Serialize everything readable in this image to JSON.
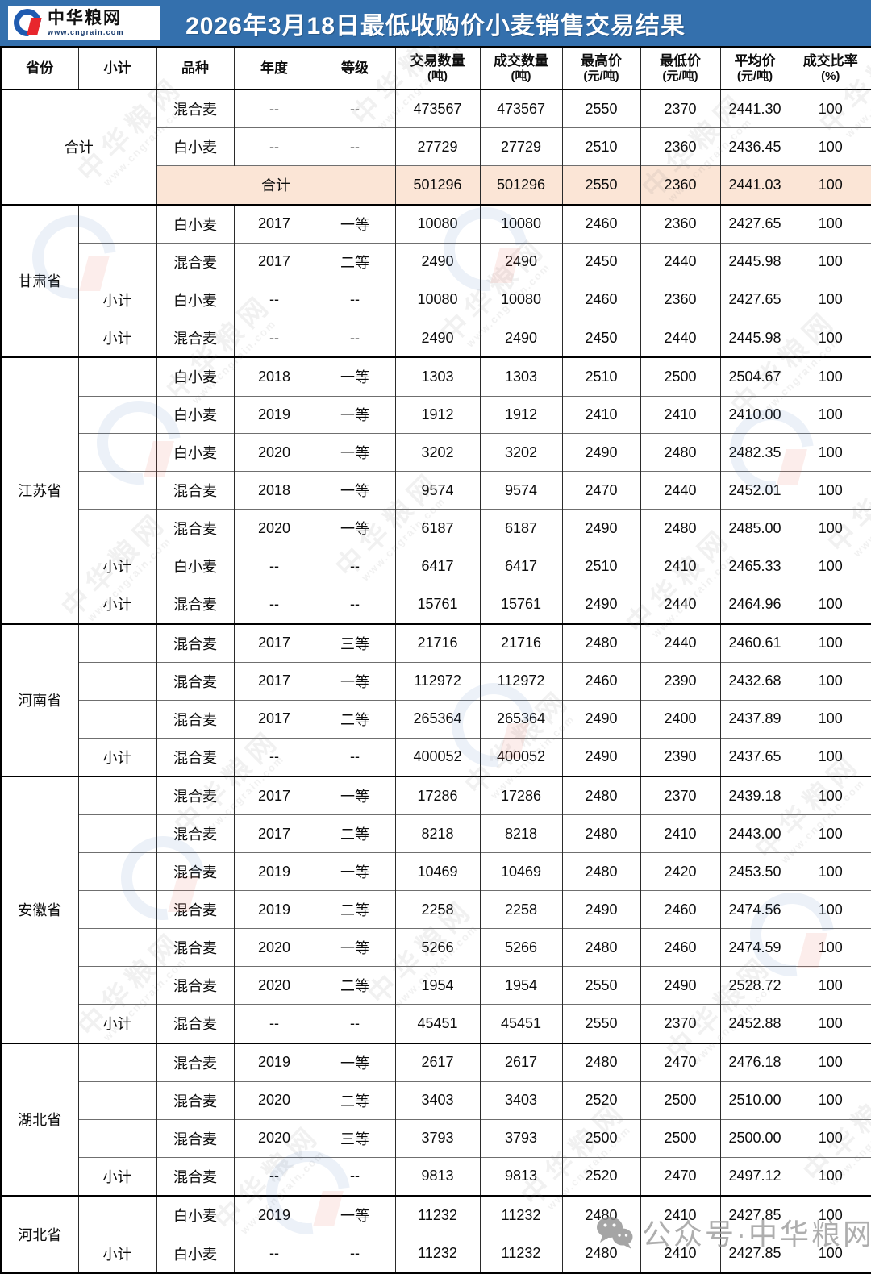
{
  "banner": {
    "logo_title": "中华粮网",
    "logo_url": "www.cngrain.com",
    "title": "2026年3月18日最低收购价小麦销售交易结果"
  },
  "table": {
    "columns": [
      {
        "label": "省份",
        "sub": ""
      },
      {
        "label": "小计",
        "sub": ""
      },
      {
        "label": "品种",
        "sub": ""
      },
      {
        "label": "年度",
        "sub": ""
      },
      {
        "label": "等级",
        "sub": ""
      },
      {
        "label": "交易数量",
        "sub": "(吨)"
      },
      {
        "label": "成交数量",
        "sub": "(吨)"
      },
      {
        "label": "最高价",
        "sub": "(元/吨)"
      },
      {
        "label": "最低价",
        "sub": "(元/吨)"
      },
      {
        "label": "平均价",
        "sub": "(元/吨)"
      },
      {
        "label": "成交比率",
        "sub": "(%)"
      }
    ],
    "sections": [
      {
        "province": "合计",
        "province_colspan": 2,
        "rows": [
          {
            "cells": [
              "混合麦",
              "--",
              "--",
              "473567",
              "473567",
              "2550",
              "2370",
              "2441.30",
              "100"
            ]
          },
          {
            "cells": [
              "白小麦",
              "--",
              "--",
              "27729",
              "27729",
              "2510",
              "2360",
              "2436.45",
              "100"
            ]
          },
          {
            "merged_label": "合计",
            "highlight": true,
            "cells": [
              "501296",
              "501296",
              "2550",
              "2360",
              "2441.03",
              "100"
            ]
          }
        ]
      },
      {
        "province": "甘肃省",
        "rows": [
          {
            "subtotal": "",
            "cells": [
              "白小麦",
              "2017",
              "一等",
              "10080",
              "10080",
              "2460",
              "2360",
              "2427.65",
              "100"
            ]
          },
          {
            "subtotal": "",
            "cells": [
              "混合麦",
              "2017",
              "二等",
              "2490",
              "2490",
              "2450",
              "2440",
              "2445.98",
              "100"
            ]
          },
          {
            "subtotal": "小计",
            "cells": [
              "白小麦",
              "--",
              "--",
              "10080",
              "10080",
              "2460",
              "2360",
              "2427.65",
              "100"
            ]
          },
          {
            "subtotal": "小计",
            "cells": [
              "混合麦",
              "--",
              "--",
              "2490",
              "2490",
              "2450",
              "2440",
              "2445.98",
              "100"
            ]
          }
        ]
      },
      {
        "province": "江苏省",
        "rows": [
          {
            "subtotal": "",
            "cells": [
              "白小麦",
              "2018",
              "一等",
              "1303",
              "1303",
              "2510",
              "2500",
              "2504.67",
              "100"
            ]
          },
          {
            "subtotal": "",
            "cells": [
              "白小麦",
              "2019",
              "一等",
              "1912",
              "1912",
              "2410",
              "2410",
              "2410.00",
              "100"
            ]
          },
          {
            "subtotal": "",
            "cells": [
              "白小麦",
              "2020",
              "一等",
              "3202",
              "3202",
              "2490",
              "2480",
              "2482.35",
              "100"
            ]
          },
          {
            "subtotal": "",
            "cells": [
              "混合麦",
              "2018",
              "一等",
              "9574",
              "9574",
              "2470",
              "2440",
              "2452.01",
              "100"
            ]
          },
          {
            "subtotal": "",
            "cells": [
              "混合麦",
              "2020",
              "一等",
              "6187",
              "6187",
              "2490",
              "2480",
              "2485.00",
              "100"
            ]
          },
          {
            "subtotal": "小计",
            "cells": [
              "白小麦",
              "--",
              "--",
              "6417",
              "6417",
              "2510",
              "2410",
              "2465.33",
              "100"
            ]
          },
          {
            "subtotal": "小计",
            "cells": [
              "混合麦",
              "--",
              "--",
              "15761",
              "15761",
              "2490",
              "2440",
              "2464.96",
              "100"
            ]
          }
        ]
      },
      {
        "province": "河南省",
        "rows": [
          {
            "subtotal": "",
            "cells": [
              "混合麦",
              "2017",
              "三等",
              "21716",
              "21716",
              "2480",
              "2440",
              "2460.61",
              "100"
            ]
          },
          {
            "subtotal": "",
            "cells": [
              "混合麦",
              "2017",
              "一等",
              "112972",
              "112972",
              "2460",
              "2390",
              "2432.68",
              "100"
            ]
          },
          {
            "subtotal": "",
            "cells": [
              "混合麦",
              "2017",
              "二等",
              "265364",
              "265364",
              "2490",
              "2400",
              "2437.89",
              "100"
            ]
          },
          {
            "subtotal": "小计",
            "cells": [
              "混合麦",
              "--",
              "--",
              "400052",
              "400052",
              "2490",
              "2390",
              "2437.65",
              "100"
            ]
          }
        ]
      },
      {
        "province": "安徽省",
        "rows": [
          {
            "subtotal": "",
            "cells": [
              "混合麦",
              "2017",
              "一等",
              "17286",
              "17286",
              "2480",
              "2370",
              "2439.18",
              "100"
            ]
          },
          {
            "subtotal": "",
            "cells": [
              "混合麦",
              "2017",
              "二等",
              "8218",
              "8218",
              "2480",
              "2410",
              "2443.00",
              "100"
            ]
          },
          {
            "subtotal": "",
            "cells": [
              "混合麦",
              "2019",
              "一等",
              "10469",
              "10469",
              "2480",
              "2420",
              "2453.50",
              "100"
            ]
          },
          {
            "subtotal": "",
            "cells": [
              "混合麦",
              "2019",
              "二等",
              "2258",
              "2258",
              "2490",
              "2460",
              "2474.56",
              "100"
            ]
          },
          {
            "subtotal": "",
            "cells": [
              "混合麦",
              "2020",
              "一等",
              "5266",
              "5266",
              "2480",
              "2460",
              "2474.59",
              "100"
            ]
          },
          {
            "subtotal": "",
            "cells": [
              "混合麦",
              "2020",
              "二等",
              "1954",
              "1954",
              "2550",
              "2490",
              "2528.72",
              "100"
            ]
          },
          {
            "subtotal": "小计",
            "cells": [
              "混合麦",
              "--",
              "--",
              "45451",
              "45451",
              "2550",
              "2370",
              "2452.88",
              "100"
            ]
          }
        ]
      },
      {
        "province": "湖北省",
        "rows": [
          {
            "subtotal": "",
            "cells": [
              "混合麦",
              "2019",
              "一等",
              "2617",
              "2617",
              "2480",
              "2470",
              "2476.18",
              "100"
            ]
          },
          {
            "subtotal": "",
            "cells": [
              "混合麦",
              "2020",
              "二等",
              "3403",
              "3403",
              "2520",
              "2500",
              "2510.00",
              "100"
            ]
          },
          {
            "subtotal": "",
            "cells": [
              "混合麦",
              "2020",
              "三等",
              "3793",
              "3793",
              "2500",
              "2500",
              "2500.00",
              "100"
            ]
          },
          {
            "subtotal": "小计",
            "cells": [
              "混合麦",
              "--",
              "--",
              "9813",
              "9813",
              "2520",
              "2470",
              "2497.12",
              "100"
            ]
          }
        ]
      },
      {
        "province": "河北省",
        "rows": [
          {
            "subtotal": "",
            "cells": [
              "白小麦",
              "2019",
              "一等",
              "11232",
              "11232",
              "2480",
              "2410",
              "2427.85",
              "100"
            ]
          },
          {
            "subtotal": "小计",
            "cells": [
              "白小麦",
              "--",
              "--",
              "11232",
              "11232",
              "2480",
              "2410",
              "2427.85",
              "100"
            ]
          }
        ]
      }
    ]
  },
  "watermark": {
    "tile_text": "中华粮网",
    "tile_sub": "www.cngrain.com",
    "wechat_text": "公众号·中华粮网"
  },
  "colors": {
    "banner_blue": "#3470ad",
    "highlight_peach": "#fbe5d6",
    "logo_blue": "#1f5bb0",
    "logo_red": "#e8262d"
  }
}
